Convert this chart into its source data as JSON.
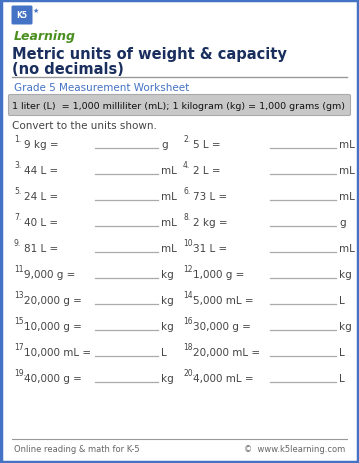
{
  "title_line1": "Metric units of weight & capacity",
  "title_line2": "(no decimals)",
  "subtitle": "Grade 5 Measurement Worksheet",
  "formula_box": "1 liter (L)  = 1,000 milliliter (mL); 1 kilogram (kg) = 1,000 grams (gm)",
  "instruction": "Convert to the units shown.",
  "problems": [
    {
      "num": "1.",
      "question": "9 kg =",
      "unit": "g"
    },
    {
      "num": "2.",
      "question": "5 L =",
      "unit": "mL"
    },
    {
      "num": "3.",
      "question": "44 L =",
      "unit": "mL"
    },
    {
      "num": "4.",
      "question": "2 L =",
      "unit": "mL"
    },
    {
      "num": "5.",
      "question": "24 L =",
      "unit": "mL"
    },
    {
      "num": "6.",
      "question": "73 L =",
      "unit": "mL"
    },
    {
      "num": "7.",
      "question": "40 L =",
      "unit": "mL"
    },
    {
      "num": "8.",
      "question": "2 kg =",
      "unit": "g"
    },
    {
      "num": "9.",
      "question": "81 L =",
      "unit": "mL"
    },
    {
      "num": "10.",
      "question": "31 L =",
      "unit": "mL"
    },
    {
      "num": "11.",
      "question": "9,000 g =",
      "unit": "kg"
    },
    {
      "num": "12.",
      "question": "1,000 g =",
      "unit": "kg"
    },
    {
      "num": "13.",
      "question": "20,000 g =",
      "unit": "kg"
    },
    {
      "num": "14.",
      "question": "5,000 mL =",
      "unit": "L"
    },
    {
      "num": "15.",
      "question": "10,000 g =",
      "unit": "kg"
    },
    {
      "num": "16.",
      "question": "30,000 g =",
      "unit": "kg"
    },
    {
      "num": "17.",
      "question": "10,000 mL =",
      "unit": "L"
    },
    {
      "num": "18.",
      "question": "20,000 mL =",
      "unit": "L"
    },
    {
      "num": "19.",
      "question": "40,000 g =",
      "unit": "kg"
    },
    {
      "num": "20.",
      "question": "4,000 mL =",
      "unit": "L"
    }
  ],
  "footer_left": "Online reading & math for K-5",
  "footer_right": "©  www.k5learning.com",
  "border_color": "#4472C4",
  "title_color": "#1a2f5e",
  "subtitle_color": "#4472C4",
  "formula_bg": "#C8C8C8",
  "body_text_color": "#444444",
  "logo_green": "#4a8f1f",
  "bg_color": "#ffffff",
  "line_color": "#aaaaaa",
  "footer_color": "#666666"
}
